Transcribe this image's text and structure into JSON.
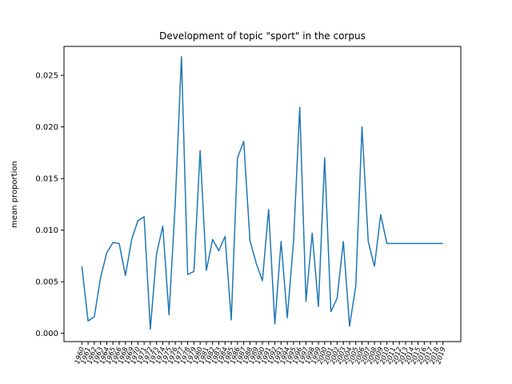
{
  "chart_data": {
    "type": "line",
    "title": "Development of topic \"sport\" in the corpus",
    "xlabel": "",
    "ylabel": "mean proportion",
    "ylim": [
      -0.0008,
      0.0278
    ],
    "yticks": [
      0.0,
      0.005,
      0.01,
      0.015,
      0.02,
      0.025
    ],
    "ytick_labels": [
      "0.000",
      "0.005",
      "0.010",
      "0.015",
      "0.020",
      "0.025"
    ],
    "grid": false,
    "legend": "none",
    "color": "#1f77b4",
    "x": [
      "1960",
      "1961",
      "1962",
      "1963",
      "1964",
      "1965",
      "1966",
      "1968",
      "1969",
      "1970",
      "1971",
      "1972",
      "1973",
      "1974",
      "1975",
      "1976",
      "1977",
      "1978",
      "1979",
      "1980",
      "1981",
      "1982",
      "1983",
      "1984",
      "1985",
      "1986",
      "1987",
      "1988",
      "1989",
      "1990",
      "1991",
      "1992",
      "1993",
      "1994",
      "1995",
      "1996",
      "1997",
      "1998",
      "1999",
      "2000",
      "2001",
      "2002",
      "2003",
      "2004",
      "2005",
      "2006",
      "2007",
      "2008",
      "2009",
      "2010",
      "2011",
      "2012",
      "2013",
      "2014",
      "2015",
      "2016",
      "2017",
      "2018",
      "2019"
    ],
    "y": [
      0.0065,
      0.0012,
      0.0016,
      0.0054,
      0.0078,
      0.0088,
      0.0087,
      0.0056,
      0.0091,
      0.0109,
      0.0113,
      0.0004,
      0.0077,
      0.0104,
      0.0018,
      0.0126,
      0.0268,
      0.0057,
      0.006,
      0.0177,
      0.0061,
      0.0091,
      0.008,
      0.0094,
      0.0013,
      0.017,
      0.0186,
      0.009,
      0.0068,
      0.0051,
      0.012,
      0.0009,
      0.0089,
      0.0015,
      0.0089,
      0.0219,
      0.0031,
      0.0097,
      0.0026,
      0.017,
      0.0021,
      0.0034,
      0.0089,
      0.0007,
      0.0046,
      0.02,
      0.0089,
      0.0065,
      0.0115,
      0.0087,
      0.0087,
      0.0087,
      0.0087,
      0.0087,
      0.0087,
      0.0087,
      0.0087,
      0.0087,
      0.0087
    ]
  }
}
